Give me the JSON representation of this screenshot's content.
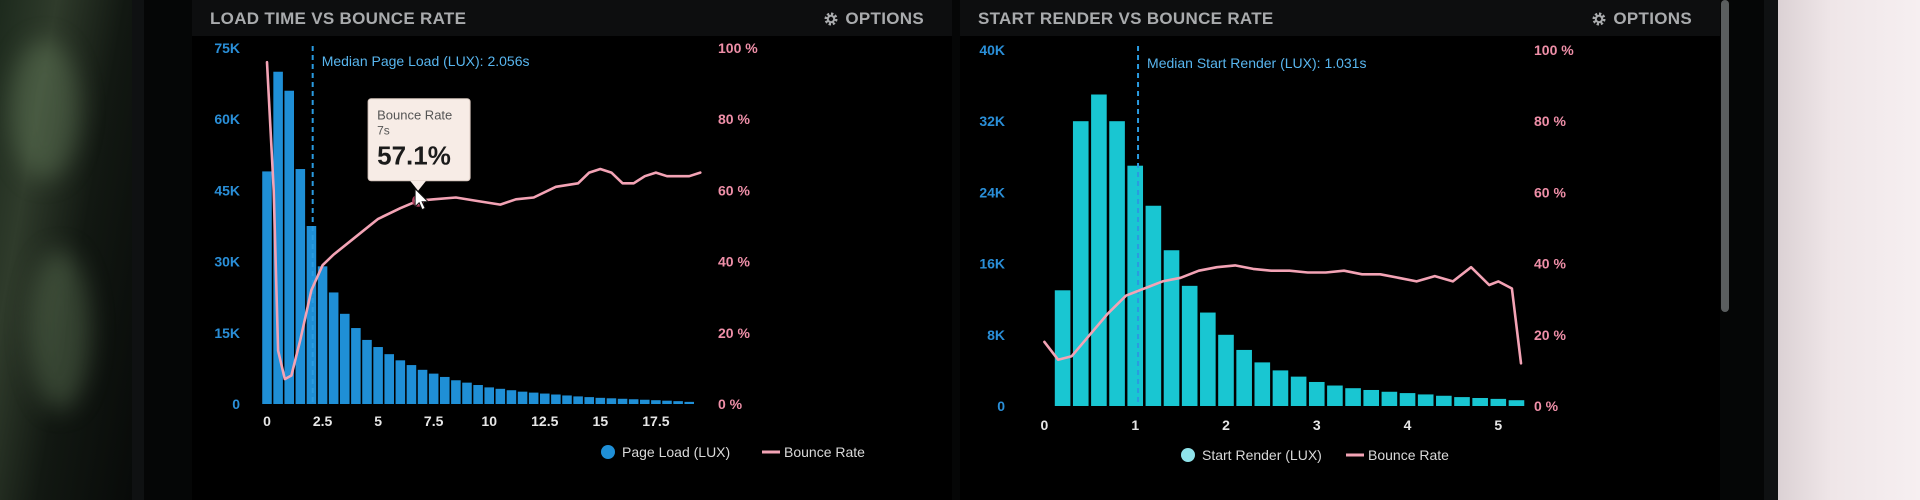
{
  "colors": {
    "bar_blue": "#1f8fd6",
    "bar_cyan": "#19c6d2",
    "bounce_pink": "#f3a3b5",
    "median_line_blue": "#2a9be0",
    "left_axis_text": "#2a8fd8",
    "right_axis_text": "#ef8fa8"
  },
  "panels": [
    {
      "title": "LOAD TIME VS BOUNCE RATE",
      "options_label": "OPTIONS",
      "options_icon": "gear-icon",
      "median_label": "Median Page Load (LUX): 2.056s",
      "tooltip": {
        "title": "Bounce Rate",
        "sub": "7s",
        "value": "57.1%"
      },
      "legend": [
        {
          "label": "Page Load (LUX)",
          "icon": "dot"
        },
        {
          "label": "Bounce Rate",
          "icon": "line"
        }
      ]
    },
    {
      "title": "START RENDER VS BOUNCE RATE",
      "options_label": "OPTIONS",
      "options_icon": "gear-icon",
      "median_label": "Median Start Render (LUX): 1.031s",
      "legend": [
        {
          "label": "Start Render (LUX)",
          "icon": "dot"
        },
        {
          "label": "Bounce Rate",
          "icon": "line"
        }
      ]
    }
  ],
  "chart_data": [
    {
      "type": "bar",
      "title": "LOAD TIME VS BOUNCE RATE",
      "x_ticks": [
        "0",
        "2.5",
        "5",
        "7.5",
        "10",
        "12.5",
        "15",
        "17.5"
      ],
      "x_range": [
        0,
        19.8
      ],
      "y_left_ticks": [
        "0",
        "15K",
        "30K",
        "45K",
        "60K",
        "75K"
      ],
      "y_left_range": [
        0,
        75000
      ],
      "y_right_ticks": [
        "0 %",
        "20 %",
        "40 %",
        "60 %",
        "80 %",
        "100 %"
      ],
      "y_right_range": [
        0,
        100
      ],
      "median_x": 2.056,
      "bar_width": 0.5,
      "series": [
        {
          "name": "Page Load (LUX)",
          "x": [
            0,
            0.5,
            1,
            1.5,
            2,
            2.5,
            3,
            3.5,
            4,
            4.5,
            5,
            5.5,
            6,
            6.5,
            7,
            7.5,
            8,
            8.5,
            9,
            9.5,
            10,
            10.5,
            11,
            11.5,
            12,
            12.5,
            13,
            13.5,
            14,
            14.5,
            15,
            15.5,
            16,
            16.5,
            17,
            17.5,
            18,
            18.5,
            19
          ],
          "values": [
            49000,
            70000,
            66000,
            49500,
            37500,
            29000,
            23500,
            19000,
            16000,
            13500,
            12000,
            10500,
            9200,
            8200,
            7200,
            6400,
            5700,
            5000,
            4500,
            4000,
            3500,
            3200,
            2900,
            2600,
            2400,
            2200,
            2000,
            1800,
            1600,
            1450,
            1300,
            1200,
            1100,
            1000,
            900,
            800,
            700,
            600,
            450
          ]
        },
        {
          "name": "Bounce Rate",
          "x": [
            0,
            0.3,
            0.5,
            0.8,
            1.1,
            1.5,
            2,
            2.5,
            3,
            4,
            5,
            6,
            6.8,
            7.5,
            8.5,
            9.5,
            10.5,
            11.2,
            12,
            13,
            14,
            14.5,
            15,
            15.5,
            16,
            16.5,
            17,
            17.5,
            18,
            19,
            19.5
          ],
          "values": [
            96,
            60,
            15,
            7,
            8,
            18,
            32,
            39,
            42,
            47,
            52,
            55,
            57.1,
            57.5,
            58,
            57,
            56,
            57.5,
            58,
            61,
            62,
            65,
            66,
            65,
            62,
            62,
            64,
            65,
            64,
            64,
            65
          ]
        }
      ]
    },
    {
      "type": "bar",
      "title": "START RENDER VS BOUNCE RATE",
      "x_ticks": [
        "0",
        "1",
        "2",
        "3",
        "4",
        "5"
      ],
      "x_range": [
        -0.06,
        5.25
      ],
      "y_left_ticks": [
        "0",
        "8K",
        "16K",
        "24K",
        "32K",
        "40K"
      ],
      "y_left_range": [
        0,
        40000
      ],
      "y_right_ticks": [
        "0 %",
        "20 %",
        "40 %",
        "60 %",
        "80 %",
        "100 %"
      ],
      "y_right_range": [
        0,
        100
      ],
      "median_x": 1.031,
      "bar_width": 0.2,
      "series": [
        {
          "name": "Start Render (LUX)",
          "x": [
            0.2,
            0.4,
            0.6,
            0.8,
            1,
            1.2,
            1.4,
            1.6,
            1.8,
            2,
            2.2,
            2.4,
            2.6,
            2.8,
            3,
            3.2,
            3.4,
            3.6,
            3.8,
            4,
            4.2,
            4.4,
            4.6,
            4.8,
            5,
            5.2
          ],
          "values": [
            13000,
            32000,
            35000,
            32000,
            27000,
            22500,
            17500,
            13500,
            10500,
            8000,
            6300,
            4900,
            4000,
            3300,
            2700,
            2300,
            2000,
            1800,
            1600,
            1450,
            1300,
            1150,
            1000,
            900,
            800,
            650
          ]
        },
        {
          "name": "Bounce Rate",
          "x": [
            0,
            0.15,
            0.3,
            0.5,
            0.7,
            0.9,
            1.1,
            1.3,
            1.5,
            1.7,
            1.9,
            2.1,
            2.3,
            2.5,
            2.7,
            2.9,
            3.1,
            3.3,
            3.5,
            3.7,
            3.9,
            4.1,
            4.3,
            4.5,
            4.7,
            4.9,
            5.0,
            5.15,
            5.25
          ],
          "values": [
            18,
            13,
            14,
            20,
            26,
            31,
            33,
            35,
            36,
            38,
            39,
            39.5,
            38.5,
            38,
            38,
            37.5,
            37.5,
            38,
            37,
            37,
            36,
            35,
            36.5,
            35,
            39,
            34,
            35,
            33,
            12
          ]
        }
      ]
    }
  ]
}
